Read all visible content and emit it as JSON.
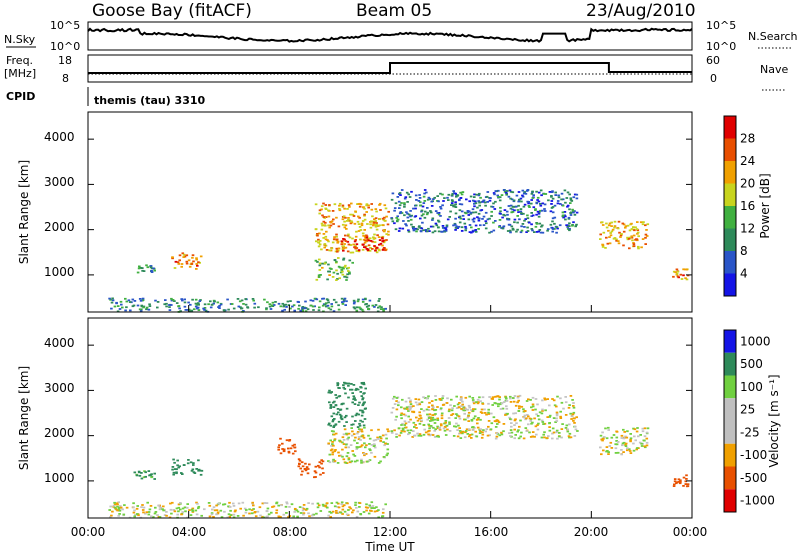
{
  "header": {
    "station": "Goose Bay (fitACF)",
    "beam": "Beam 05",
    "date": "23/Aug/2010"
  },
  "noise_panel": {
    "left_label": "N.Sky",
    "right_label": "N.Search",
    "ticks_left": [
      "10^5",
      "10^0"
    ],
    "ticks_right": [
      "10^5",
      "10^0"
    ]
  },
  "freq_panel": {
    "left_label_1": "Freq.",
    "left_label_2": "[MHz]",
    "right_label": "Nave",
    "ticks_left": [
      "18",
      "8"
    ],
    "ticks_right": [
      "60",
      "0"
    ]
  },
  "cpid_panel": {
    "label": "CPID",
    "value": "themis (tau) 3310"
  },
  "xaxis": {
    "label": "Time UT",
    "ticks": [
      "00:00",
      "04:00",
      "08:00",
      "12:00",
      "16:00",
      "20:00",
      "00:00"
    ]
  },
  "colors": {
    "power_scale": [
      "#1414e6",
      "#2a55c8",
      "#2e8a5a",
      "#40b040",
      "#c8d41e",
      "#f0a000",
      "#e84e00",
      "#e00000"
    ],
    "velocity_scale": [
      "#e00000",
      "#e85000",
      "#f0a000",
      "#c0c0c0",
      "#c0c0c0",
      "#70d040",
      "#2e8a5a",
      "#1414e6"
    ],
    "gray_fill": "#c4c4c4"
  },
  "chart_data": [
    {
      "type": "heatmap",
      "panel": "power",
      "ylabel": "Slant Range [km]",
      "yticks": [
        "1000",
        "2000",
        "3000",
        "4000"
      ],
      "colorbar_label": "Power [dB]",
      "colorbar_ticks": [
        "4",
        "8",
        "12",
        "16",
        "20",
        "24",
        "28"
      ],
      "colorbar_range": [
        0,
        30
      ],
      "x_range_hours": [
        0,
        24
      ],
      "y_range_km": [
        180,
        4600
      ],
      "features": [
        {
          "t_start": 1.8,
          "t_end": 2.6,
          "range_start": 1050,
          "range_end": 1250,
          "level_db": 10
        },
        {
          "t_start": 3.3,
          "t_end": 4.5,
          "range_start": 1150,
          "range_end": 1500,
          "level_db": 22
        },
        {
          "t_start": 0.8,
          "t_end": 11.8,
          "range_start": 200,
          "range_end": 500,
          "level_db": 9
        },
        {
          "t_start": 9.0,
          "t_end": 11.9,
          "range_start": 1500,
          "range_end": 2600,
          "level_db": 20
        },
        {
          "t_start": 10.0,
          "t_end": 11.9,
          "range_start": 1550,
          "range_end": 1850,
          "level_db": 27
        },
        {
          "t_start": 9.0,
          "t_end": 10.5,
          "range_start": 900,
          "range_end": 1400,
          "level_db": 14
        },
        {
          "t_start": 12.0,
          "t_end": 19.4,
          "range_start": 1950,
          "range_end": 2900,
          "level_db": 7
        },
        {
          "t_start": 20.3,
          "t_end": 22.2,
          "range_start": 1600,
          "range_end": 2200,
          "level_db": 20
        },
        {
          "t_start": 23.2,
          "t_end": 23.8,
          "range_start": 900,
          "range_end": 1150,
          "level_db": 22
        }
      ]
    },
    {
      "type": "heatmap",
      "panel": "velocity",
      "ylabel": "Slant Range [km]",
      "yticks": [
        "1000",
        "2000",
        "3000",
        "4000"
      ],
      "colorbar_label": "Velocity [m s⁻¹]",
      "colorbar_ticks": [
        "1000",
        "500",
        "100",
        "25",
        "-25",
        "-100",
        "-500",
        "-1000"
      ],
      "x_range_hours": [
        0,
        24
      ],
      "y_range_km": [
        180,
        4600
      ],
      "features": [
        {
          "t_start": 1.8,
          "t_end": 2.6,
          "range_start": 1050,
          "range_end": 1250,
          "velocity": 150
        },
        {
          "t_start": 3.3,
          "t_end": 4.5,
          "range_start": 1150,
          "range_end": 1500,
          "velocity": 200
        },
        {
          "t_start": 0.8,
          "t_end": 11.8,
          "range_start": 200,
          "range_end": 550,
          "velocity": 0
        },
        {
          "t_start": 7.5,
          "t_end": 8.2,
          "range_start": 1600,
          "range_end": 2000,
          "velocity": -300
        },
        {
          "t_start": 8.3,
          "t_end": 9.3,
          "range_start": 1100,
          "range_end": 1500,
          "velocity": -400
        },
        {
          "t_start": 9.5,
          "t_end": 11.9,
          "range_start": 1400,
          "range_end": 2200,
          "velocity": 0
        },
        {
          "t_start": 9.5,
          "t_end": 11.0,
          "range_start": 2200,
          "range_end": 3200,
          "velocity": 200
        },
        {
          "t_start": 12.0,
          "t_end": 19.4,
          "range_start": 1950,
          "range_end": 2900,
          "velocity": 0
        },
        {
          "t_start": 20.3,
          "t_end": 22.2,
          "range_start": 1600,
          "range_end": 2200,
          "velocity": 0
        },
        {
          "t_start": 23.2,
          "t_end": 23.8,
          "range_start": 900,
          "range_end": 1150,
          "velocity": -200
        }
      ]
    }
  ]
}
